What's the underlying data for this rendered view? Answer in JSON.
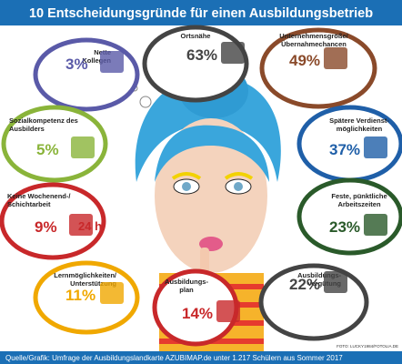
{
  "header": {
    "title": "10 Entscheidungsgründe für einen Ausbildungsbetrieb"
  },
  "items": [
    {
      "label": "Nette Kollegen",
      "value": "3%"
    },
    {
      "label": "Ortsnähe",
      "value": "63%"
    },
    {
      "label": "Unternehmensgröße/ Übernahmechancen",
      "value": "49%"
    },
    {
      "label": "Sozialkompetenz des Ausbilders",
      "value": "5%"
    },
    {
      "label": "Spätere Verdienst- möglichkeiten",
      "value": "37%"
    },
    {
      "label": "Keine Wochenend-/ Schichtarbeit",
      "value": "9%"
    },
    {
      "label": "Feste, pünktliche Arbeitszeiten",
      "value": "23%"
    },
    {
      "label": "Lernmöglichkeiten/ Unterstützung",
      "value": "11%"
    },
    {
      "label": "Ausbildungs- plan",
      "value": "14%"
    },
    {
      "label": "Ausbildungs- vergütung",
      "value": "22%"
    }
  ],
  "icon_text": "24 h",
  "credit": "FOTO: LUCKY1984/FOTOLIA.DE",
  "footer": {
    "source": "Quelle/Grafik: Umfrage der Ausbildungslandkarte AZUBIMAP.de unter 1.217 Schülern aus Sommer 2017"
  }
}
